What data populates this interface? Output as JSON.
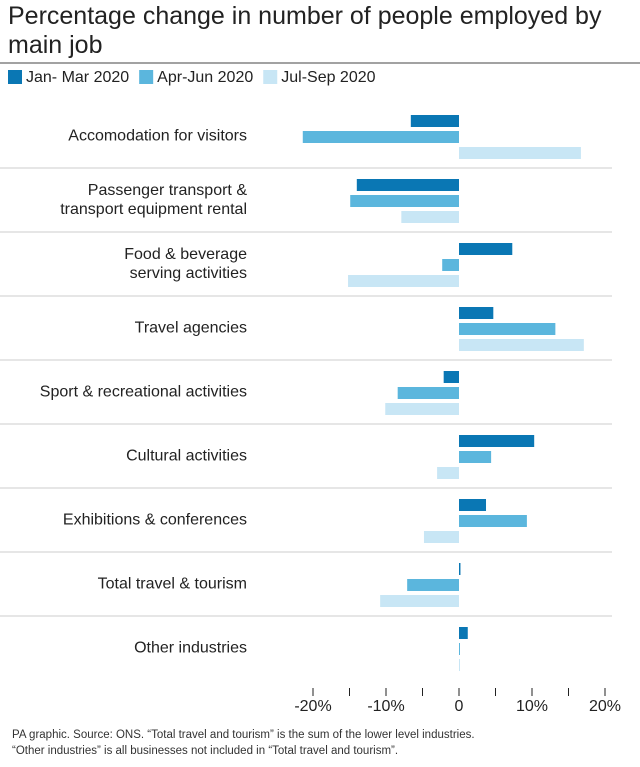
{
  "chart_data": {
    "type": "hbar",
    "title": "Percentage change in number of people employed by main job",
    "categories": [
      "Accomodation for visitors",
      "Passenger transport &\ntransport equipment rental",
      "Food & beverage\nserving activities",
      "Travel agencies",
      "Sport & recreational activities",
      "Cultural activities",
      "Exhibitions & conferences",
      "Total travel & tourism",
      "Other industries"
    ],
    "series": [
      {
        "name": "Jan- Mar 2020",
        "color": "#0a77b4",
        "values": [
          -6.6,
          -14.0,
          7.3,
          4.7,
          -2.1,
          10.3,
          3.7,
          0.2,
          1.2
        ]
      },
      {
        "name": "Apr-Jun 2020",
        "color": "#5bb6dd",
        "values": [
          -21.4,
          -14.9,
          -2.3,
          13.2,
          -8.4,
          4.4,
          9.3,
          -7.1,
          0.1
        ]
      },
      {
        "name": "Jul-Sep 2020",
        "color": "#c8e6f5",
        "values": [
          16.7,
          -7.9,
          -15.2,
          17.1,
          -10.1,
          -3.0,
          -4.8,
          -10.8,
          0.1
        ]
      }
    ],
    "xlim": [
      -25,
      25
    ],
    "xticks": [
      {
        "value": -20,
        "label": "-20%"
      },
      {
        "value": -10,
        "label": "-10%"
      },
      0,
      {
        "value": 10,
        "label": "10%"
      },
      {
        "value": 20,
        "label": "20%"
      }
    ],
    "xminorticks": [
      -15,
      -5,
      5,
      15
    ],
    "notes": [
      "PA graphic. Source: ONS. “Total travel and tourism” is the sum of the lower level industries.",
      "“Other industries” is all businesses not included in “Total travel and tourism”."
    ]
  }
}
